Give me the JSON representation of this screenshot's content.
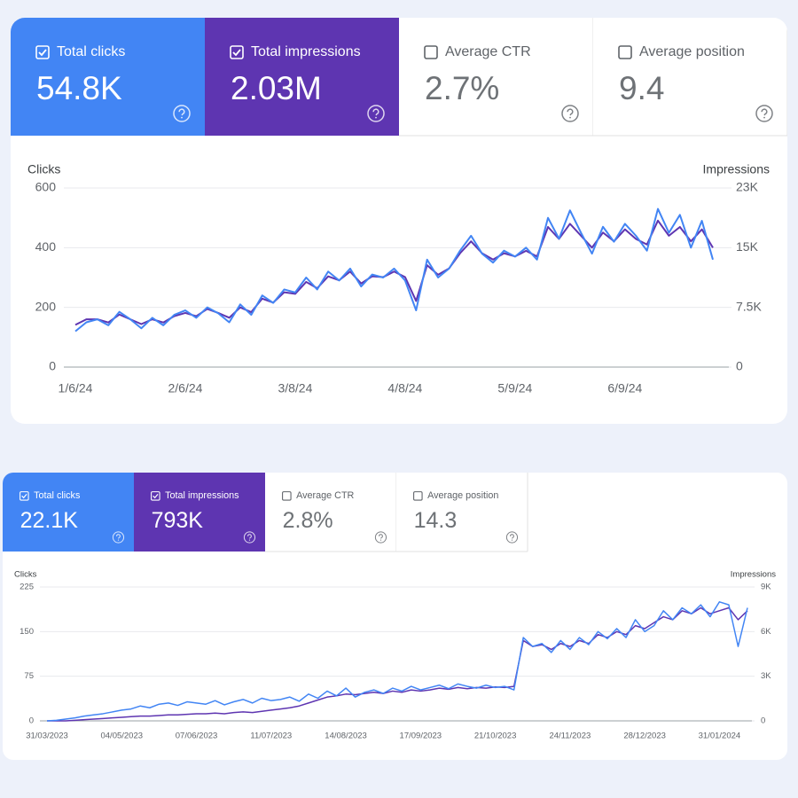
{
  "panels": [
    {
      "metrics": [
        {
          "label": "Total clicks",
          "value": "54.8K",
          "checked": true,
          "color": "#4285f4"
        },
        {
          "label": "Total impressions",
          "value": "2.03M",
          "checked": true,
          "color": "#5e35b1"
        },
        {
          "label": "Average CTR",
          "value": "2.7%",
          "checked": false
        },
        {
          "label": "Average position",
          "value": "9.4",
          "checked": false
        }
      ]
    },
    {
      "metrics": [
        {
          "label": "Total clicks",
          "value": "22.1K",
          "checked": true,
          "color": "#4285f4"
        },
        {
          "label": "Total impressions",
          "value": "793K",
          "checked": true,
          "color": "#5e35b1"
        },
        {
          "label": "Average CTR",
          "value": "2.8%",
          "checked": false
        },
        {
          "label": "Average position",
          "value": "14.3",
          "checked": false
        }
      ]
    }
  ],
  "chart_data": [
    {
      "type": "line",
      "ylabel": "Clicks",
      "y2label": "Impressions",
      "grid": true,
      "categories": [
        "1/6/24",
        null,
        null,
        null,
        null,
        null,
        null,
        null,
        null,
        null,
        "2/6/24",
        null,
        null,
        null,
        null,
        null,
        null,
        null,
        null,
        null,
        "3/8/24",
        null,
        null,
        null,
        null,
        null,
        null,
        null,
        null,
        null,
        "4/8/24",
        null,
        null,
        null,
        null,
        null,
        null,
        null,
        null,
        null,
        "5/9/24",
        null,
        null,
        null,
        null,
        null,
        null,
        null,
        null,
        null,
        "6/9/24",
        null,
        null,
        null,
        null,
        null,
        null,
        null,
        null
      ],
      "ylim": [
        0,
        600
      ],
      "yticks": [
        0,
        200,
        400,
        600
      ],
      "y2lim": [
        0,
        22500
      ],
      "y2ticks": [
        0,
        {
          "value": 7500,
          "label": "7.5K"
        },
        {
          "value": 15000,
          "label": "15K"
        },
        {
          "value": 22500,
          "label": "23K"
        }
      ],
      "series": [
        {
          "color": "#4285f4",
          "values": [
            120,
            150,
            160,
            140,
            185,
            160,
            130,
            165,
            140,
            175,
            190,
            165,
            200,
            180,
            150,
            210,
            175,
            240,
            215,
            260,
            250,
            300,
            260,
            320,
            290,
            330,
            270,
            310,
            300,
            330,
            290,
            190,
            360,
            300,
            330,
            390,
            440,
            380,
            350,
            390,
            370,
            400,
            360,
            500,
            430,
            525,
            450,
            380,
            470,
            420,
            480,
            440,
            390,
            530,
            450,
            510,
            400,
            490,
            360
          ]
        },
        {
          "color": "#5e35b1",
          "axis": "y2",
          "values": [
            5300,
            6000,
            6000,
            5600,
            6600,
            6000,
            5400,
            6000,
            5600,
            6400,
            6800,
            6400,
            7300,
            6800,
            6200,
            7500,
            6900,
            8600,
            8100,
            9400,
            9200,
            10700,
            9900,
            11400,
            10900,
            12000,
            10500,
            11400,
            11300,
            12000,
            11300,
            8300,
            12800,
            11600,
            12400,
            14300,
            15800,
            14300,
            13500,
            14300,
            13900,
            14600,
            13900,
            17600,
            16100,
            18000,
            16500,
            15000,
            16900,
            15800,
            17300,
            16100,
            15400,
            18400,
            16500,
            17600,
            15800,
            17300,
            15000
          ]
        }
      ]
    },
    {
      "type": "line",
      "ylabel": "Clicks",
      "y2label": "Impressions",
      "grid": true,
      "categories": [
        "31/03/2023",
        null,
        null,
        null,
        null,
        null,
        null,
        null,
        "04/05/2023",
        null,
        null,
        null,
        null,
        null,
        null,
        null,
        "07/06/2023",
        null,
        null,
        null,
        null,
        null,
        null,
        null,
        "11/07/2023",
        null,
        null,
        null,
        null,
        null,
        null,
        null,
        "14/08/2023",
        null,
        null,
        null,
        null,
        null,
        null,
        null,
        "17/09/2023",
        null,
        null,
        null,
        null,
        null,
        null,
        null,
        "21/10/2023",
        null,
        null,
        null,
        null,
        null,
        null,
        null,
        "24/11/2023",
        null,
        null,
        null,
        null,
        null,
        null,
        null,
        "28/12/2023",
        null,
        null,
        null,
        null,
        null,
        null,
        null,
        "31/01/2024",
        null,
        null,
        null
      ],
      "ylim": [
        0,
        225
      ],
      "yticks": [
        0,
        75,
        150,
        225
      ],
      "y2lim": [
        0,
        9000
      ],
      "y2ticks": [
        0,
        {
          "value": 3000,
          "label": "3K"
        },
        {
          "value": 6000,
          "label": "6K"
        },
        {
          "value": 9000,
          "label": "9K"
        }
      ],
      "series": [
        {
          "color": "#4285f4",
          "values": [
            0,
            1,
            3,
            5,
            8,
            10,
            12,
            15,
            18,
            20,
            25,
            22,
            28,
            30,
            26,
            32,
            30,
            28,
            34,
            27,
            32,
            36,
            30,
            38,
            34,
            36,
            40,
            33,
            45,
            38,
            50,
            42,
            55,
            40,
            48,
            52,
            46,
            55,
            50,
            58,
            52,
            56,
            60,
            54,
            62,
            58,
            55,
            60,
            56,
            58,
            52,
            140,
            125,
            130,
            115,
            135,
            120,
            140,
            128,
            150,
            138,
            155,
            140,
            170,
            150,
            160,
            185,
            170,
            190,
            180,
            195,
            175,
            200,
            195,
            125,
            190
          ]
        },
        {
          "color": "#5e35b1",
          "axis": "y2",
          "values": [
            0,
            0,
            0,
            40,
            80,
            120,
            160,
            200,
            240,
            280,
            320,
            320,
            360,
            400,
            400,
            440,
            480,
            480,
            520,
            480,
            560,
            600,
            560,
            640,
            720,
            800,
            880,
            1000,
            1200,
            1400,
            1600,
            1680,
            1800,
            1760,
            1840,
            1920,
            1840,
            2000,
            1920,
            2080,
            2000,
            2080,
            2200,
            2120,
            2240,
            2160,
            2240,
            2200,
            2280,
            2240,
            2320,
            5400,
            5000,
            5120,
            4800,
            5200,
            5000,
            5400,
            5200,
            5800,
            5600,
            6000,
            5800,
            6400,
            6200,
            6600,
            7000,
            6800,
            7400,
            7200,
            7600,
            7200,
            7400,
            7600,
            6800,
            7400
          ]
        }
      ]
    }
  ]
}
